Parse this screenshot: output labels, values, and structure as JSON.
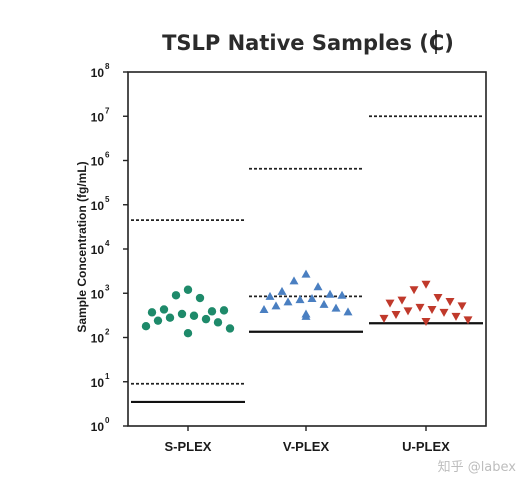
{
  "chart_data": {
    "type": "scatter",
    "title": "TSLP Native Samples (C)",
    "ylabel": "Sample Concentration (fg/mL)",
    "xlabel": "",
    "yscale": "log",
    "ylim": [
      1,
      100000000
    ],
    "yticks": [
      {
        "base": "10",
        "exp": "0",
        "value": 1
      },
      {
        "base": "10",
        "exp": "1",
        "value": 10
      },
      {
        "base": "10",
        "exp": "2",
        "value": 100
      },
      {
        "base": "10",
        "exp": "3",
        "value": 1000
      },
      {
        "base": "10",
        "exp": "4",
        "value": 10000
      },
      {
        "base": "10",
        "exp": "5",
        "value": 100000
      },
      {
        "base": "10",
        "exp": "6",
        "value": 1000000
      },
      {
        "base": "10",
        "exp": "7",
        "value": 10000000
      },
      {
        "base": "10",
        "exp": "8",
        "value": 100000000
      }
    ],
    "categories": [
      "S-PLEX",
      "V-PLEX",
      "U-PLEX"
    ],
    "grid": false,
    "series": [
      {
        "category": "S-PLEX",
        "marker": "circle",
        "color": "#1e8a6a",
        "values": [
          1200,
          900,
          780,
          430,
          390,
          370,
          410,
          340,
          310,
          280,
          260,
          240,
          220,
          180,
          160,
          125
        ],
        "lod_dashed": 9,
        "lloq_solid": 3.5,
        "uloq_dashed": 45000
      },
      {
        "category": "V-PLEX",
        "marker": "triangle-up",
        "color": "#4a7fc1",
        "values": [
          2700,
          1900,
          1400,
          1100,
          950,
          850,
          900,
          720,
          760,
          640,
          560,
          520,
          460,
          430,
          380,
          340,
          300
        ],
        "lod_dashed": 850,
        "lloq_solid": 135,
        "uloq_dashed": 650000
      },
      {
        "category": "U-PLEX",
        "marker": "triangle-down",
        "color": "#c0392b",
        "values": [
          1600,
          1200,
          800,
          700,
          650,
          600,
          520,
          480,
          430,
          400,
          370,
          330,
          300,
          270,
          250,
          230
        ],
        "lod_dashed": 0,
        "lloq_solid": 210,
        "uloq_dashed": 10000000
      }
    ]
  },
  "watermark": "知乎 @labex"
}
